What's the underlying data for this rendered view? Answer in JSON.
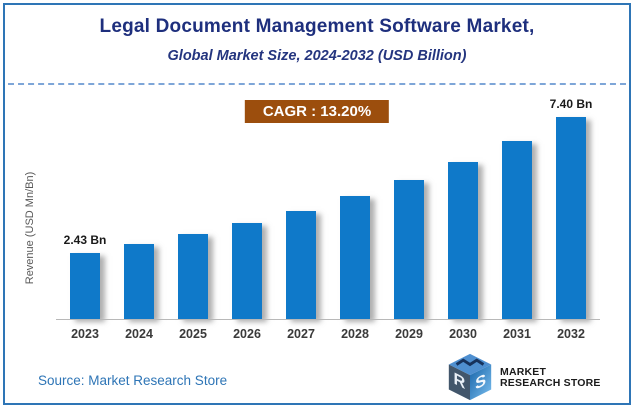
{
  "page": {
    "border_color": "#2E75B6",
    "background": "#FFFFFF"
  },
  "header": {
    "title": "Legal Document Management Software Market,",
    "subtitle": "Global Market Size, 2024-2032 (USD Billion)",
    "title_color": "#1E2F7D"
  },
  "cagr_badge": {
    "text": "CAGR :  13.20%",
    "bg_color": "#9C4E0D",
    "text_color": "#FFFFFF"
  },
  "chart_data": {
    "type": "bar",
    "categories": [
      "2023",
      "2024",
      "2025",
      "2026",
      "2027",
      "2028",
      "2029",
      "2030",
      "2031",
      "2032"
    ],
    "values": [
      2.43,
      2.74,
      3.1,
      3.51,
      3.97,
      4.5,
      5.09,
      5.76,
      6.52,
      7.4
    ],
    "point_labels": {
      "2023": "2.43 Bn",
      "2032": "7.40 Bn"
    },
    "title": "Legal Document Management Software Market,",
    "subtitle": "Global Market Size, 2024-2032 (USD Billion)",
    "xlabel": "",
    "ylabel": "Revenue (USD Mn/Bn)",
    "ylim": [
      0,
      7.4
    ],
    "bar_color": "#0F79C9",
    "grid": false,
    "legend": "none",
    "cagr": "13.20%"
  },
  "footer": {
    "source": "Source: Market Research Store"
  },
  "logo": {
    "line1": "MARKET",
    "line2": "RESEARCH STORE",
    "monogram": "MRS"
  }
}
